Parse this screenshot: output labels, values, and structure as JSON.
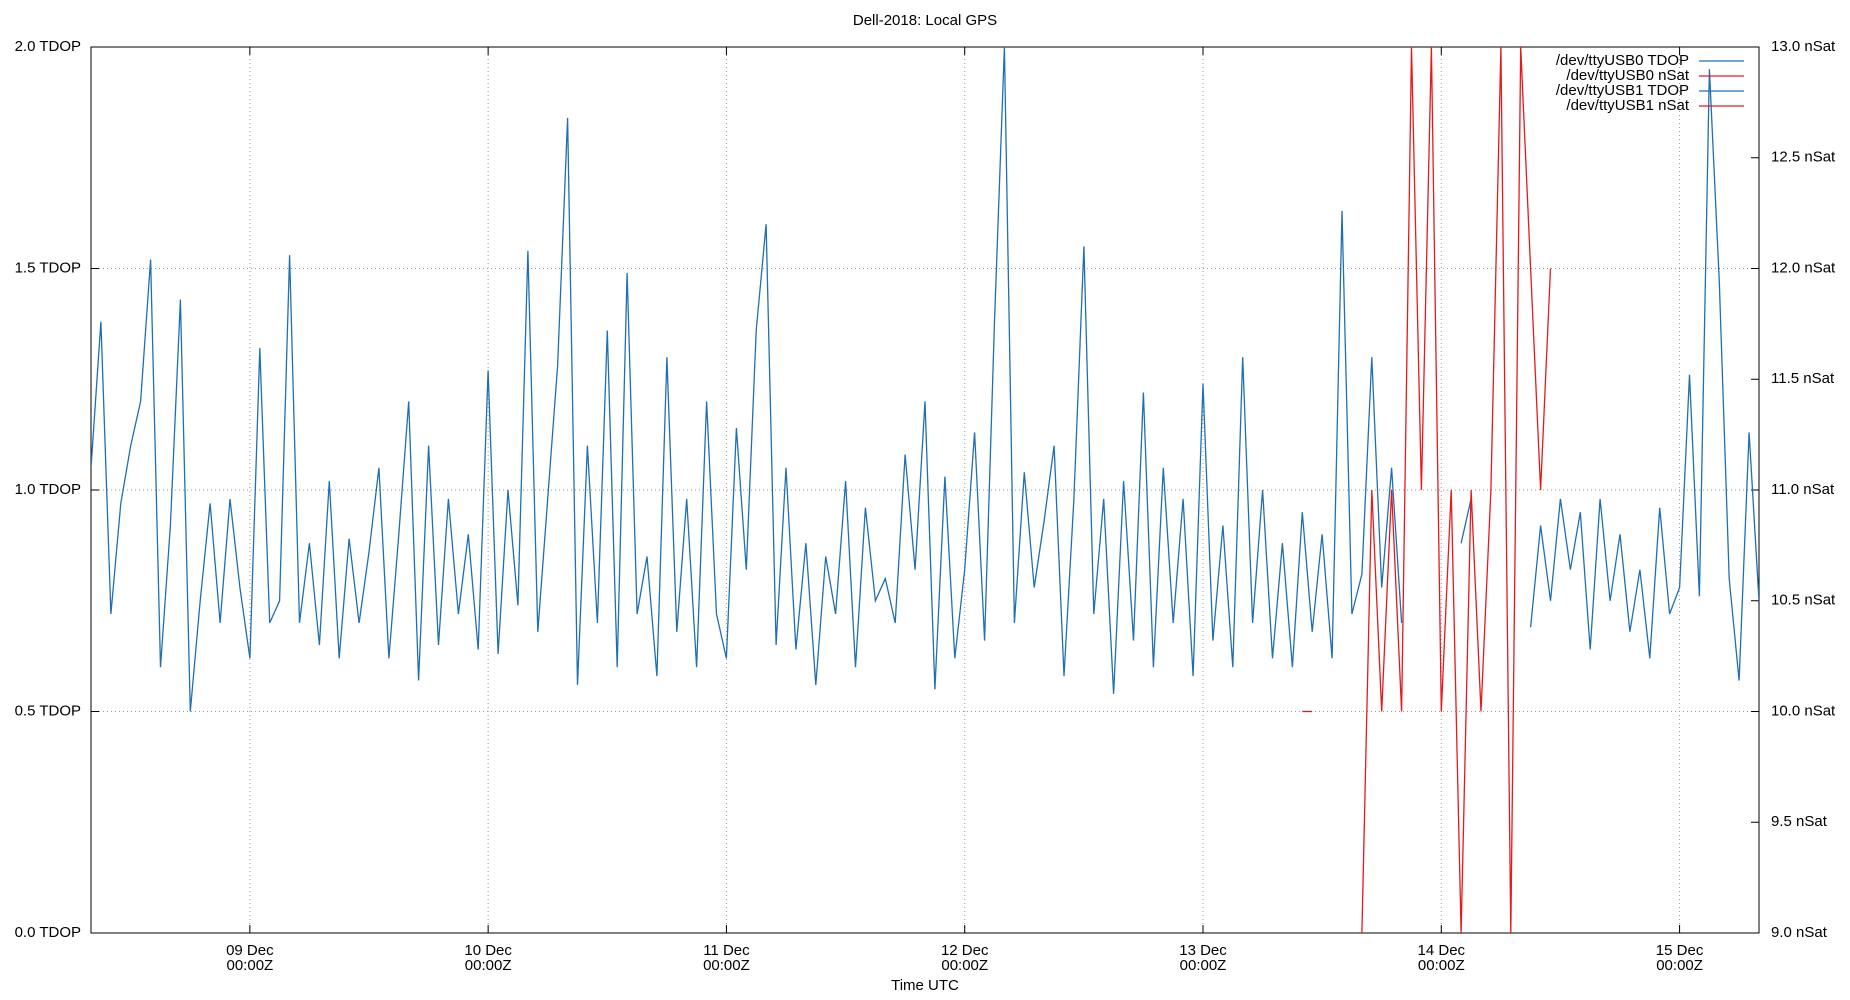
{
  "chart_data": {
    "type": "line",
    "title": "Dell-2018: Local GPS",
    "xlabel": "Time UTC",
    "xlim": [
      "08 Dec 08:00Z",
      "15 Dec 08:00Z"
    ],
    "xticks": [
      {
        "value": "09 Dec 00:00Z",
        "label": [
          "09 Dec",
          "00:00Z"
        ]
      },
      {
        "value": "10 Dec 00:00Z",
        "label": [
          "10 Dec",
          "00:00Z"
        ]
      },
      {
        "value": "11 Dec 00:00Z",
        "label": [
          "11 Dec",
          "00:00Z"
        ]
      },
      {
        "value": "12 Dec 00:00Z",
        "label": [
          "12 Dec",
          "00:00Z"
        ]
      },
      {
        "value": "13 Dec 00:00Z",
        "label": [
          "13 Dec",
          "00:00Z"
        ]
      },
      {
        "value": "14 Dec 00:00Z",
        "label": [
          "14 Dec",
          "00:00Z"
        ]
      },
      {
        "value": "15 Dec 00:00Z",
        "label": [
          "15 Dec",
          "00:00Z"
        ]
      }
    ],
    "ylim": [
      0,
      2
    ],
    "yticks": [
      {
        "value": 0,
        "label": "0.0 TDOP"
      },
      {
        "value": 0.5,
        "label": "0.5 TDOP"
      },
      {
        "value": 1,
        "label": "1.0 TDOP"
      },
      {
        "value": 1.5,
        "label": "1.5 TDOP"
      },
      {
        "value": 2,
        "label": "2.0 TDOP"
      }
    ],
    "y2lim": [
      9,
      13
    ],
    "y2ticks": [
      {
        "value": 9,
        "label": "9.0 nSat"
      },
      {
        "value": 9.5,
        "label": "9.5 nSat"
      },
      {
        "value": 10,
        "label": "10.0 nSat"
      },
      {
        "value": 10.5,
        "label": "10.5 nSat"
      },
      {
        "value": 11,
        "label": "11.0 nSat"
      },
      {
        "value": 11.5,
        "label": "11.5 nSat"
      },
      {
        "value": 12,
        "label": "12.0 nSat"
      },
      {
        "value": 12.5,
        "label": "12.5 nSat"
      },
      {
        "value": 13,
        "label": "13.0 nSat"
      }
    ],
    "grid": true,
    "legend": "top right",
    "series": [
      {
        "name": "/dev/ttyUSB0 TDOP",
        "color": "#1f6fb4",
        "x": [
          "08 Dec 08:00Z",
          "08 Dec 09:00Z",
          "08 Dec 10:00Z",
          "08 Dec 11:00Z",
          "08 Dec 12:00Z",
          "08 Dec 13:00Z",
          "08 Dec 14:00Z",
          "08 Dec 15:00Z",
          "08 Dec 16:00Z",
          "08 Dec 17:00Z",
          "08 Dec 18:00Z",
          "08 Dec 19:00Z",
          "08 Dec 20:00Z",
          "08 Dec 21:00Z",
          "08 Dec 22:00Z",
          "08 Dec 23:00Z",
          "09 Dec 00:00Z",
          "09 Dec 01:00Z",
          "09 Dec 02:00Z",
          "09 Dec 03:00Z",
          "09 Dec 04:00Z",
          "09 Dec 05:00Z",
          "09 Dec 06:00Z",
          "09 Dec 07:00Z",
          "09 Dec 08:00Z",
          "09 Dec 09:00Z",
          "09 Dec 10:00Z",
          "09 Dec 11:00Z",
          "09 Dec 12:00Z",
          "09 Dec 13:00Z",
          "09 Dec 14:00Z",
          "09 Dec 15:00Z",
          "09 Dec 16:00Z",
          "09 Dec 17:00Z",
          "09 Dec 18:00Z",
          "09 Dec 19:00Z",
          "09 Dec 20:00Z",
          "09 Dec 21:00Z",
          "09 Dec 22:00Z",
          "09 Dec 23:00Z",
          "10 Dec 00:00Z",
          "10 Dec 01:00Z",
          "10 Dec 02:00Z",
          "10 Dec 03:00Z",
          "10 Dec 04:00Z",
          "10 Dec 05:00Z",
          "10 Dec 06:00Z",
          "10 Dec 07:00Z",
          "10 Dec 08:00Z",
          "10 Dec 09:00Z",
          "10 Dec 10:00Z",
          "10 Dec 11:00Z",
          "10 Dec 12:00Z",
          "10 Dec 13:00Z",
          "10 Dec 14:00Z",
          "10 Dec 15:00Z",
          "10 Dec 16:00Z",
          "10 Dec 17:00Z",
          "10 Dec 18:00Z",
          "10 Dec 19:00Z",
          "10 Dec 20:00Z",
          "10 Dec 21:00Z",
          "10 Dec 22:00Z",
          "10 Dec 23:00Z",
          "11 Dec 00:00Z",
          "11 Dec 01:00Z",
          "11 Dec 02:00Z",
          "11 Dec 03:00Z",
          "11 Dec 04:00Z",
          "11 Dec 05:00Z",
          "11 Dec 06:00Z",
          "11 Dec 07:00Z",
          "11 Dec 08:00Z",
          "11 Dec 09:00Z",
          "11 Dec 10:00Z",
          "11 Dec 11:00Z",
          "11 Dec 12:00Z",
          "11 Dec 13:00Z",
          "11 Dec 14:00Z",
          "11 Dec 15:00Z",
          "11 Dec 16:00Z",
          "11 Dec 17:00Z",
          "11 Dec 18:00Z",
          "11 Dec 19:00Z",
          "11 Dec 20:00Z",
          "11 Dec 21:00Z",
          "11 Dec 22:00Z",
          "11 Dec 23:00Z",
          "12 Dec 00:00Z",
          "12 Dec 01:00Z",
          "12 Dec 02:00Z",
          "12 Dec 03:00Z",
          "12 Dec 04:00Z",
          "12 Dec 05:00Z",
          "12 Dec 06:00Z",
          "12 Dec 07:00Z",
          "12 Dec 08:00Z",
          "12 Dec 09:00Z",
          "12 Dec 10:00Z",
          "12 Dec 11:00Z",
          "12 Dec 12:00Z",
          "12 Dec 13:00Z",
          "12 Dec 14:00Z",
          "12 Dec 15:00Z",
          "12 Dec 16:00Z",
          "12 Dec 17:00Z",
          "12 Dec 18:00Z",
          "12 Dec 19:00Z",
          "12 Dec 20:00Z",
          "12 Dec 21:00Z",
          "12 Dec 22:00Z",
          "12 Dec 23:00Z",
          "13 Dec 00:00Z",
          "13 Dec 01:00Z",
          "13 Dec 02:00Z",
          "13 Dec 03:00Z",
          "13 Dec 04:00Z",
          "13 Dec 05:00Z",
          "13 Dec 06:00Z",
          "13 Dec 07:00Z",
          "13 Dec 08:00Z",
          "13 Dec 09:00Z",
          "13 Dec 10:00Z",
          "13 Dec 11:00Z",
          "13 Dec 12:00Z",
          "13 Dec 13:00Z",
          "13 Dec 14:00Z",
          "13 Dec 15:00Z",
          "13 Dec 16:00Z",
          "13 Dec 17:00Z",
          "13 Dec 18:00Z",
          "13 Dec 19:00Z",
          "13 Dec 20:00Z"
        ],
        "values": [
          1.05,
          1.38,
          0.72,
          0.97,
          1.1,
          1.2,
          1.52,
          0.6,
          0.92,
          1.43,
          0.5,
          0.75,
          0.97,
          0.7,
          0.98,
          0.78,
          0.62,
          1.32,
          0.7,
          0.75,
          1.53,
          0.7,
          0.88,
          0.65,
          1.02,
          0.62,
          0.89,
          0.7,
          0.86,
          1.05,
          0.62,
          0.9,
          1.2,
          0.57,
          1.1,
          0.65,
          0.98,
          0.72,
          0.9,
          0.64,
          1.27,
          0.63,
          1.0,
          0.74,
          1.54,
          0.68,
          0.98,
          1.28,
          1.84,
          0.56,
          1.1,
          0.7,
          1.36,
          0.6,
          1.49,
          0.72,
          0.85,
          0.58,
          1.3,
          0.68,
          0.98,
          0.6,
          1.2,
          0.72,
          0.62,
          1.14,
          0.82,
          1.36,
          1.6,
          0.65,
          1.05,
          0.64,
          0.88,
          0.56,
          0.85,
          0.72,
          1.02,
          0.6,
          0.96,
          0.75,
          0.8,
          0.7,
          1.08,
          0.82,
          1.2,
          0.55,
          1.03,
          0.62,
          0.82,
          1.13,
          0.66,
          1.38,
          2.0,
          0.7,
          1.04,
          0.78,
          0.93,
          1.1,
          0.58,
          0.98,
          1.55,
          0.72,
          0.98,
          0.54,
          1.02,
          0.66,
          1.22,
          0.6,
          1.05,
          0.7,
          0.98,
          0.58,
          1.24,
          0.66,
          0.92,
          0.6,
          1.3,
          0.7,
          1.0,
          0.62,
          0.88,
          0.6,
          0.95,
          0.68,
          0.9,
          0.62,
          1.63,
          0.72,
          0.81,
          1.3,
          0.78,
          1.05,
          0.7
        ]
      },
      {
        "name": "/dev/ttyUSB0 nSat",
        "color": "#e41a1c",
        "axis": "y2",
        "x": [
          "13 Dec 10:00Z",
          "13 Dec 11:00Z"
        ],
        "values": [
          10.0,
          10.0
        ]
      },
      {
        "name": "/dev/ttyUSB1 TDOP",
        "color": "#1f6fb4",
        "x": [
          "14 Dec 02:00Z",
          "14 Dec 03:00Z",
          "14 Dec 04:00Z",
          "14 Dec 09:00Z",
          "14 Dec 10:00Z",
          "14 Dec 11:00Z",
          "14 Dec 12:00Z",
          "14 Dec 13:00Z",
          "14 Dec 14:00Z",
          "14 Dec 15:00Z",
          "14 Dec 16:00Z",
          "14 Dec 17:00Z",
          "14 Dec 18:00Z",
          "14 Dec 19:00Z",
          "14 Dec 20:00Z",
          "14 Dec 21:00Z",
          "14 Dec 22:00Z",
          "14 Dec 23:00Z",
          "15 Dec 00:00Z",
          "15 Dec 01:00Z",
          "15 Dec 02:00Z",
          "15 Dec 03:00Z",
          "15 Dec 04:00Z",
          "15 Dec 05:00Z",
          "15 Dec 06:00Z",
          "15 Dec 07:00Z",
          "15 Dec 08:00Z"
        ],
        "values": [
          0.88,
          0.98,
          null,
          0.69,
          0.92,
          0.75,
          0.98,
          0.82,
          0.95,
          0.64,
          0.98,
          0.75,
          0.9,
          0.68,
          0.82,
          0.62,
          0.96,
          0.72,
          0.78,
          1.26,
          0.76,
          1.95,
          1.47,
          0.8,
          0.57,
          1.13,
          0.75
        ]
      },
      {
        "name": "/dev/ttyUSB1 nSat",
        "color": "#e41a1c",
        "axis": "y2",
        "x": [
          "13 Dec 16:00Z",
          "13 Dec 17:00Z",
          "13 Dec 18:00Z",
          "13 Dec 19:00Z",
          "13 Dec 20:00Z",
          "13 Dec 21:00Z",
          "13 Dec 22:00Z",
          "13 Dec 23:00Z",
          "14 Dec 00:00Z",
          "14 Dec 01:00Z",
          "14 Dec 02:00Z",
          "14 Dec 03:00Z",
          "14 Dec 04:00Z",
          "14 Dec 05:00Z",
          "14 Dec 06:00Z",
          "14 Dec 07:00Z",
          "14 Dec 08:00Z",
          "14 Dec 09:00Z",
          "14 Dec 10:00Z",
          "14 Dec 11:00Z"
        ],
        "values": [
          9.0,
          11.0,
          10.0,
          11.0,
          10.0,
          13.0,
          11.0,
          13.0,
          10.0,
          11.0,
          9.0,
          11.0,
          10.0,
          11.0,
          13.0,
          9.0,
          13.0,
          12.0,
          11.0,
          12.0
        ]
      }
    ]
  }
}
